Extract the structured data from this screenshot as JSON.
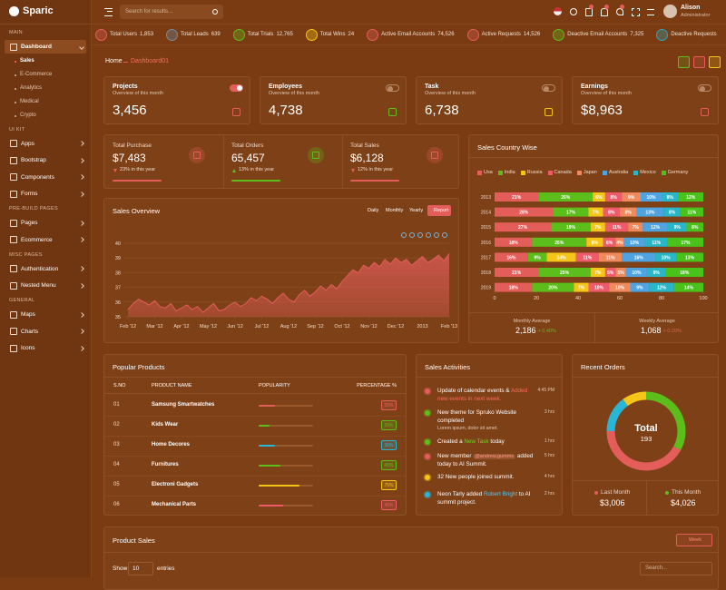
{
  "sidebar": {
    "logo": "Sparic",
    "sections": [
      {
        "title": "MAIN",
        "items": [
          {
            "label": "Dashboard",
            "active": true,
            "children": [
              "Sales",
              "E-Commerce",
              "Analytics",
              "Medical",
              "Crypto"
            ]
          }
        ]
      },
      {
        "title": "UI KIT",
        "items": [
          {
            "label": "Apps"
          },
          {
            "label": "Bootstrap"
          },
          {
            "label": "Components"
          },
          {
            "label": "Forms"
          }
        ]
      },
      {
        "title": "PRE-BUILD PAGES",
        "items": [
          {
            "label": "Pages"
          },
          {
            "label": "Ecommerce"
          }
        ]
      },
      {
        "title": "MISC PAGES",
        "items": [
          {
            "label": "Authentication"
          },
          {
            "label": "Nested Menu"
          }
        ]
      },
      {
        "title": "GENERAL",
        "items": [
          {
            "label": "Maps"
          },
          {
            "label": "Charts"
          },
          {
            "label": "Icons"
          }
        ]
      }
    ]
  },
  "header": {
    "search_placeholder": "Search for results...",
    "user_name": "Alison",
    "user_role": "Administrator"
  },
  "ticker": [
    {
      "label": "Total Users",
      "value": "1,853",
      "color": "#e35d5a"
    },
    {
      "label": "Total Leads",
      "value": "639",
      "color": "#6f8da3"
    },
    {
      "label": "Total Trials",
      "value": "12,765",
      "color": "#5cbe1b"
    },
    {
      "label": "Total Wins",
      "value": "24",
      "color": "#f5c518"
    },
    {
      "label": "Active Email Accounts",
      "value": "74,526",
      "color": "#e35d5a"
    },
    {
      "label": "Active Requests",
      "value": "14,526",
      "color": "#e35d5a"
    },
    {
      "label": "Deactive Email Accounts",
      "value": "7,325",
      "color": "#5cbe1b"
    },
    {
      "label": "Deactive Requests",
      "value": "",
      "color": "#29a6b6"
    }
  ],
  "breadcrumb": {
    "home": "Home",
    "current": "Dashboard01"
  },
  "stat_cards": [
    {
      "title": "Projects",
      "subtitle": "Overview of this month",
      "value": "3,456",
      "color": "#e35d5a",
      "toggle_on": true
    },
    {
      "title": "Employees",
      "subtitle": "Overview of this month",
      "value": "4,738",
      "color": "#5cbe1b",
      "toggle_on": false
    },
    {
      "title": "Task",
      "subtitle": "Overview of this month",
      "value": "6,738",
      "color": "#f5c518",
      "toggle_on": false
    },
    {
      "title": "Earnings",
      "subtitle": "Overview of this month",
      "value": "$8,963",
      "color": "#e35d5a",
      "toggle_on": false
    }
  ],
  "summary": [
    {
      "title": "Total Purchase",
      "value": "$7,483",
      "change": "23% in this year",
      "color": "#e35d5a"
    },
    {
      "title": "Total Orders",
      "value": "65,457",
      "change": "13% in this year",
      "color": "#5cbe1b"
    },
    {
      "title": "Total Sales",
      "value": "$6,128",
      "change": "12% in this year",
      "color": "#e35d5a"
    }
  ],
  "chart_data": [
    {
      "type": "area",
      "title": "Sales Overview",
      "buttons": [
        "Daily",
        "Monthly",
        "Yearly",
        "Report"
      ],
      "color": "#e35d5a",
      "x": [
        0,
        1,
        2,
        3,
        4,
        5,
        6,
        7,
        8,
        9,
        10,
        11,
        12,
        13,
        14,
        15,
        16,
        17,
        18,
        19,
        20,
        21,
        22,
        23,
        24,
        25,
        26,
        27,
        28,
        29,
        30,
        31,
        32,
        33,
        34,
        35,
        36,
        37,
        38,
        39,
        40,
        41,
        42,
        43,
        44,
        45,
        46,
        47,
        48,
        49,
        50,
        51,
        52,
        53,
        54,
        55,
        56,
        57,
        58,
        59,
        60
      ],
      "values": [
        35.5,
        35.9,
        36.2,
        36.0,
        35.8,
        36.1,
        35.7,
        35.6,
        35.9,
        35.4,
        35.6,
        35.8,
        35.5,
        35.7,
        35.3,
        35.6,
        35.9,
        35.4,
        35.5,
        35.8,
        36.0,
        35.7,
        35.9,
        36.3,
        36.1,
        36.4,
        36.2,
        35.9,
        36.3,
        36.6,
        36.2,
        36.0,
        36.5,
        36.8,
        36.4,
        36.7,
        37.1,
        36.8,
        37.2,
        36.9,
        37.4,
        37.8,
        38.2,
        38.0,
        38.5,
        38.3,
        38.7,
        38.4,
        38.9,
        38.6,
        39.0,
        38.7,
        38.9,
        38.5,
        38.8,
        39.1,
        38.7,
        38.9,
        39.2,
        38.8,
        39.3
      ],
      "xlim": [
        0,
        60
      ],
      "xticks": [
        {
          "value": 0,
          "label": "Feb '12"
        },
        {
          "value": 5,
          "label": "Mar '12"
        },
        {
          "value": 10,
          "label": "Apr '12"
        },
        {
          "value": 15,
          "label": "May '12"
        },
        {
          "value": 20,
          "label": "Jun '12"
        },
        {
          "value": 25,
          "label": "Jul '12"
        },
        {
          "value": 30,
          "label": "Aug '12"
        },
        {
          "value": 35,
          "label": "Sep '12"
        },
        {
          "value": 40,
          "label": "Oct '12"
        },
        {
          "value": 45,
          "label": "Nov '12"
        },
        {
          "value": 50,
          "label": "Dec '12"
        },
        {
          "value": 55,
          "label": "2013"
        },
        {
          "value": 60,
          "label": "Feb '13"
        }
      ],
      "ylim": [
        35,
        40
      ],
      "yticks": [
        35,
        36,
        37,
        38,
        39,
        40
      ],
      "grid": true
    },
    {
      "type": "stacked-hbar",
      "title": "Sales Country Wise",
      "categories": [
        "2013",
        "2014",
        "2015",
        "2016",
        "2017",
        "2018",
        "2019"
      ],
      "xlim": [
        0,
        100
      ],
      "xticks": [
        0,
        20,
        40,
        60,
        80,
        100
      ],
      "series": [
        {
          "name": "Usa",
          "color": "#e35d5a",
          "values": [
            21,
            28,
            27,
            18,
            16,
            21,
            18
          ],
          "value_labels": [
            "21%",
            "28%",
            "27%",
            "18%",
            "16%",
            "21%",
            "18%"
          ]
        },
        {
          "name": "India",
          "color": "#5cbe1b",
          "values": [
            26,
            17,
            19,
            26,
            9,
            25,
            20
          ],
          "value_labels": [
            "26%",
            "17%",
            "19%",
            "26%",
            "9%",
            "25%",
            "20%"
          ]
        },
        {
          "name": "Russia",
          "color": "#f5c518",
          "values": [
            6,
            7,
            7,
            8,
            14,
            7,
            7
          ],
          "value_labels": [
            "6%",
            "7%",
            "7%",
            "8%",
            "14%",
            "7%",
            "7%"
          ]
        },
        {
          "name": "Canada",
          "color": "#ef5b6b",
          "values": [
            8,
            8,
            11,
            6,
            11,
            5,
            10
          ],
          "value_labels": [
            "8%",
            "8%",
            "11%",
            "6%",
            "11%",
            "5%",
            "10%"
          ]
        },
        {
          "name": "Japan",
          "color": "#f08a5d",
          "values": [
            9,
            8,
            7,
            4,
            11,
            5,
            10
          ],
          "value_labels": [
            "9%",
            "8%",
            "7%",
            "4%",
            "11%",
            "5%",
            "10%"
          ]
        },
        {
          "name": "Australia",
          "color": "#4fa3e0",
          "values": [
            10,
            13,
            12,
            10,
            16,
            10,
            9
          ],
          "value_labels": [
            "10%",
            "13%",
            "12%",
            "10%",
            "16%",
            "10%",
            "9%"
          ]
        },
        {
          "name": "Mexico",
          "color": "#29b6c6",
          "values": [
            8,
            8,
            9,
            11,
            10,
            9,
            12
          ],
          "value_labels": [
            "8%",
            "8%",
            "9%",
            "11%",
            "10%",
            "9%",
            "12%"
          ]
        },
        {
          "name": "Germany",
          "color": "#49c21a",
          "values": [
            12,
            11,
            8,
            17,
            13,
            18,
            14
          ],
          "value_labels": [
            "12%",
            "11%",
            "8%",
            "17%",
            "13%",
            "18%",
            "14%"
          ]
        }
      ]
    },
    {
      "type": "donut",
      "title": "Recent Orders",
      "center_label": "Total",
      "center_value": 193,
      "values": [
        33,
        42,
        15,
        10
      ],
      "colors": [
        "#5cbe1b",
        "#e35d5a",
        "#29b6d6",
        "#f5c518"
      ]
    }
  ],
  "country_footer": [
    {
      "label": "Monthly Average",
      "value": "2,186",
      "change": "+ 0.40%",
      "color": "#5cbe1b"
    },
    {
      "label": "Weekly Average",
      "value": "1,068",
      "change": "+ 0.20%",
      "color": "#e35d5a"
    }
  ],
  "products": {
    "title": "Popular Products",
    "columns": [
      "S.NO",
      "PRODUCT NAME",
      "POPULARITY",
      "PERCENTAGE %"
    ],
    "rows": [
      {
        "sno": "01",
        "name": "Samsung Smartwatches",
        "percent": 30,
        "percent_label": "30%",
        "color": "#e35d5a"
      },
      {
        "sno": "02",
        "name": "Kids Wear",
        "percent": 20,
        "percent_label": "20%",
        "color": "#5cbe1b"
      },
      {
        "sno": "03",
        "name": "Home Decores",
        "percent": 30,
        "percent_label": "30%",
        "color": "#29b6d6"
      },
      {
        "sno": "04",
        "name": "Furnitures",
        "percent": 40,
        "percent_label": "40%",
        "color": "#5cbe1b"
      },
      {
        "sno": "05",
        "name": "Electroni Gadgets",
        "percent": 75,
        "percent_label": "75%",
        "color": "#f5c518"
      },
      {
        "sno": "06",
        "name": "Mechanical Parts",
        "percent": 45,
        "percent_label": "45%",
        "color": "#ef5b6b"
      }
    ]
  },
  "activities": {
    "title": "Sales Activities",
    "items": [
      {
        "text": [
          "Update of calendar events & ",
          "Added new events in next week."
        ],
        "time": "4:45 PM",
        "color": "#e35d5a",
        "highlight_color": "#ff6b5e"
      },
      {
        "text": [
          "New theme for Spruko Website completed"
        ],
        "sub": "Lorem ipsum, dolor sit amet.",
        "time": "3 hrs",
        "color": "#5cbe1b"
      },
      {
        "text": [
          "Created a ",
          "New Task",
          " today"
        ],
        "time": "1 hrs",
        "color": "#5cbe1b",
        "highlight_color": "#6fd42a"
      },
      {
        "text": [
          "New member ",
          "@andrew.gumms",
          " added today to AI Summit."
        ],
        "time": "5 hrs",
        "color": "#e35d5a",
        "highlight_color": "#ff9a8a"
      },
      {
        "text": [
          "32 New people joined summit."
        ],
        "time": "4 hrs",
        "color": "#f5c518"
      },
      {
        "text": [
          "Neon Tarly added ",
          "Robert Bright",
          " to AI summit project."
        ],
        "time": "2 hrs",
        "color": "#29b6d6",
        "highlight_color": "#5cc8f0"
      }
    ]
  },
  "recent_orders": {
    "last_label": "Last Month",
    "last_value": "$3,006",
    "this_label": "This Month",
    "this_value": "$4,026"
  },
  "product_sales": {
    "title": "Product Sales",
    "filter": "Week",
    "show": "Show",
    "entries_count": "10",
    "entries": "entries",
    "search": "Search..."
  }
}
